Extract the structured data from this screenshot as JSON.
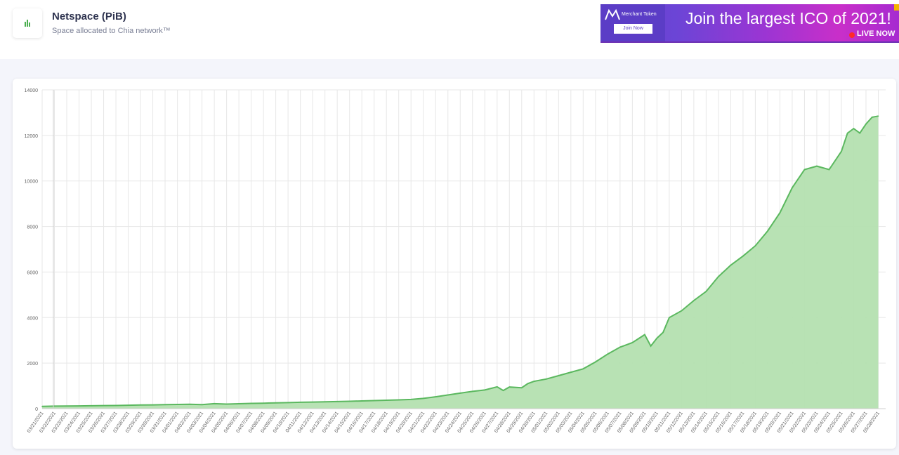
{
  "header": {
    "title": "Netspace (PiB)",
    "subtitle": "Space allocated to Chia network™",
    "icon": "bar-chart-icon"
  },
  "ad": {
    "brand": "Merchant Token",
    "button_label": "Join Now",
    "headline": "Join the largest ICO of 2021!",
    "live_label": "LIVE NOW"
  },
  "colors": {
    "line": "#5bb85f",
    "fill": "#b4e0b0",
    "grid": "#e7e7e7",
    "title": "#2f3450",
    "ad_purple": "#6a3cc9"
  },
  "chart_data": {
    "type": "area",
    "title": "",
    "xlabel": "",
    "ylabel": "",
    "ylim": [
      0,
      14000
    ],
    "yticks": [
      0,
      2000,
      4000,
      6000,
      8000,
      10000,
      12000,
      14000
    ],
    "grid": true,
    "x_tick_labels": [
      "03/21/2021",
      "03/22/2021",
      "03/23/2021",
      "03/24/2021",
      "03/25/2021",
      "03/26/2021",
      "03/27/2021",
      "03/28/2021",
      "03/29/2021",
      "03/30/2021",
      "03/31/2021",
      "04/01/2021",
      "04/02/2021",
      "04/03/2021",
      "04/04/2021",
      "04/05/2021",
      "04/06/2021",
      "04/07/2021",
      "04/08/2021",
      "04/09/2021",
      "04/10/2021",
      "04/11/2021",
      "04/12/2021",
      "04/13/2021",
      "04/14/2021",
      "04/15/2021",
      "04/16/2021",
      "04/17/2021",
      "04/18/2021",
      "04/19/2021",
      "04/20/2021",
      "04/21/2021",
      "04/22/2021",
      "04/23/2021",
      "04/24/2021",
      "04/25/2021",
      "04/26/2021",
      "04/27/2021",
      "04/28/2021",
      "04/29/2021",
      "04/30/2021",
      "05/01/2021",
      "05/02/2021",
      "05/03/2021",
      "05/04/2021",
      "05/05/2021",
      "05/06/2021",
      "05/07/2021",
      "05/08/2021",
      "05/09/2021",
      "05/10/2021",
      "05/11/2021",
      "05/12/2021",
      "05/13/2021",
      "05/14/2021",
      "05/15/2021",
      "05/16/2021",
      "05/17/2021",
      "05/18/2021",
      "05/19/2021",
      "05/20/2021",
      "05/21/2021",
      "05/22/2021",
      "05/23/2021",
      "05/24/2021",
      "05/25/2021",
      "05/26/2021",
      "05/27/2021",
      "05/28/2021"
    ],
    "series": [
      {
        "x": [
          "03/21/2021",
          "03/22/2021",
          "03/23/2021",
          "03/24/2021",
          "03/25/2021",
          "03/26/2021",
          "03/27/2021",
          "03/28/2021",
          "03/29/2021",
          "03/30/2021",
          "03/31/2021",
          "04/01/2021",
          "04/02/2021",
          "04/03/2021",
          "04/04/2021",
          "04/05/2021",
          "04/06/2021",
          "04/07/2021",
          "04/08/2021",
          "04/09/2021",
          "04/10/2021",
          "04/11/2021",
          "04/12/2021",
          "04/13/2021",
          "04/14/2021",
          "04/15/2021",
          "04/16/2021",
          "04/17/2021",
          "04/18/2021",
          "04/19/2021",
          "04/20/2021",
          "04/21/2021",
          "04/22/2021",
          "04/23/2021",
          "04/24/2021",
          "04/25/2021",
          "04/26/2021",
          "04/27/2021",
          "04/27/2021",
          "04/28/2021",
          "04/29/2021",
          "04/29/2021",
          "04/30/2021",
          "05/01/2021",
          "05/02/2021",
          "05/03/2021",
          "05/04/2021",
          "05/05/2021",
          "05/06/2021",
          "05/07/2021",
          "05/08/2021",
          "05/09/2021",
          "05/09/2021",
          "05/10/2021",
          "05/10/2021",
          "05/11/2021",
          "05/12/2021",
          "05/13/2021",
          "05/14/2021",
          "05/15/2021",
          "05/16/2021",
          "05/17/2021",
          "05/18/2021",
          "05/19/2021",
          "05/20/2021",
          "05/21/2021",
          "05/22/2021",
          "05/23/2021",
          "05/24/2021",
          "05/25/2021",
          "05/25/2021",
          "05/26/2021",
          "05/26/2021",
          "05/27/2021",
          "05/27/2021",
          "05/28/2021"
        ],
        "values": [
          100,
          110,
          115,
          120,
          125,
          135,
          140,
          150,
          160,
          165,
          175,
          185,
          195,
          180,
          220,
          200,
          215,
          230,
          240,
          255,
          265,
          280,
          290,
          300,
          310,
          325,
          340,
          355,
          370,
          385,
          405,
          450,
          520,
          600,
          680,
          760,
          820,
          960,
          800,
          950,
          920,
          1100,
          1200,
          1300,
          1450,
          1600,
          1750,
          2050,
          2400,
          2700,
          2900,
          3250,
          2750,
          3100,
          3350,
          4000,
          4300,
          4750,
          5150,
          5800,
          6300,
          6700,
          7150,
          7800,
          8600,
          9700,
          10500,
          10650,
          10500,
          11300,
          12100,
          12300,
          12100,
          12500,
          12800,
          12850
        ]
      }
    ]
  }
}
